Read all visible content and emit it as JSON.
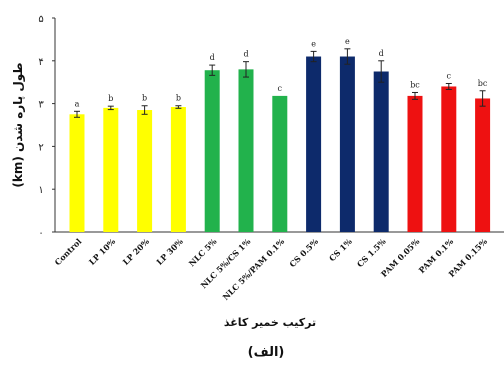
{
  "chart_data": {
    "type": "bar",
    "xlabel": "ترکیب خمیر کاغذ",
    "ylabel": "طول پاره شدن (km)",
    "caption": "(الف)",
    "ylim": [
      0,
      5
    ],
    "yticks": [
      "۰",
      "۱",
      "۲",
      "۳",
      "۴",
      "۵"
    ],
    "grid": false,
    "bars": [
      {
        "category": "Control",
        "value": 2.75,
        "error": 0.07,
        "letter": "a",
        "color": "#ffff00"
      },
      {
        "category": "LP 10%",
        "value": 2.9,
        "error": 0.04,
        "letter": "b",
        "color": "#ffff00"
      },
      {
        "category": "LP 20%",
        "value": 2.85,
        "error": 0.1,
        "letter": "b",
        "color": "#ffff00"
      },
      {
        "category": "LP 30%",
        "value": 2.92,
        "error": 0.03,
        "letter": "b",
        "color": "#ffff00"
      },
      {
        "category": "NLC 5%",
        "value": 3.78,
        "error": 0.12,
        "letter": "d",
        "color": "#22b24c"
      },
      {
        "category": "NLC 5%/CS 1%",
        "value": 3.8,
        "error": 0.18,
        "letter": "d",
        "color": "#22b24c"
      },
      {
        "category": "NLC 5%/PAM 0.1%",
        "value": 3.18,
        "error": 0,
        "letter": "c",
        "color": "#22b24c"
      },
      {
        "category": "CS 0.5%",
        "value": 4.1,
        "error": 0.12,
        "letter": "e",
        "color": "#0d2a6b"
      },
      {
        "category": "CS 1%",
        "value": 4.1,
        "error": 0.18,
        "letter": "e",
        "color": "#0d2a6b"
      },
      {
        "category": "CS 1.5%",
        "value": 3.75,
        "error": 0.25,
        "letter": "d",
        "color": "#0d2a6b"
      },
      {
        "category": "PAM 0.05%",
        "value": 3.18,
        "error": 0.08,
        "letter": "bc",
        "color": "#ee1111"
      },
      {
        "category": "PAM 0.1%",
        "value": 3.4,
        "error": 0.07,
        "letter": "c",
        "color": "#ee1111"
      },
      {
        "category": "PAM 0.15%",
        "value": 3.12,
        "error": 0.18,
        "letter": "bc",
        "color": "#ee1111"
      }
    ]
  }
}
